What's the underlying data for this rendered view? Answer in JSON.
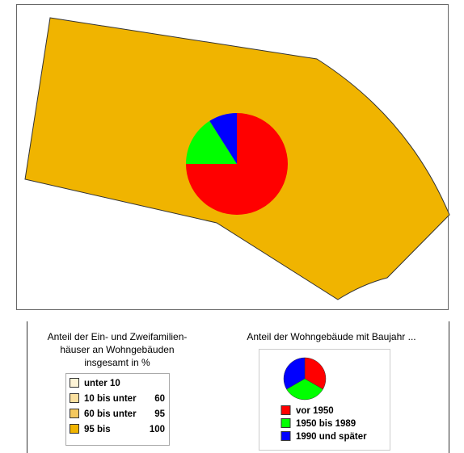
{
  "map": {
    "region": {
      "color": "#f0b400"
    },
    "pie": {
      "type": "pie",
      "series": [
        {
          "name": "vor 1950",
          "color": "#ff0000",
          "value": 75
        },
        {
          "name": "1950 bis 1989",
          "color": "#00ff00",
          "value": 16
        },
        {
          "name": "1990 und später",
          "color": "#0000ff",
          "value": 9
        }
      ]
    }
  },
  "legend_left": {
    "title": [
      "Anteil der Ein- und Zweifamilien-",
      "häuser an Wohngebäuden",
      "insgesamt in %"
    ],
    "classes": [
      {
        "label": "unter 10",
        "color": "#fdf3d6"
      },
      {
        "label": "10 bis unter",
        "upper": "60",
        "color": "#fae0a0"
      },
      {
        "label": "60 bis unter",
        "upper": "95",
        "color": "#f5c95e"
      },
      {
        "label": "95 bis",
        "upper": "100",
        "color": "#f0b400"
      }
    ]
  },
  "legend_right": {
    "title": "Anteil der Wohngebäude mit Baujahr ..."
  }
}
